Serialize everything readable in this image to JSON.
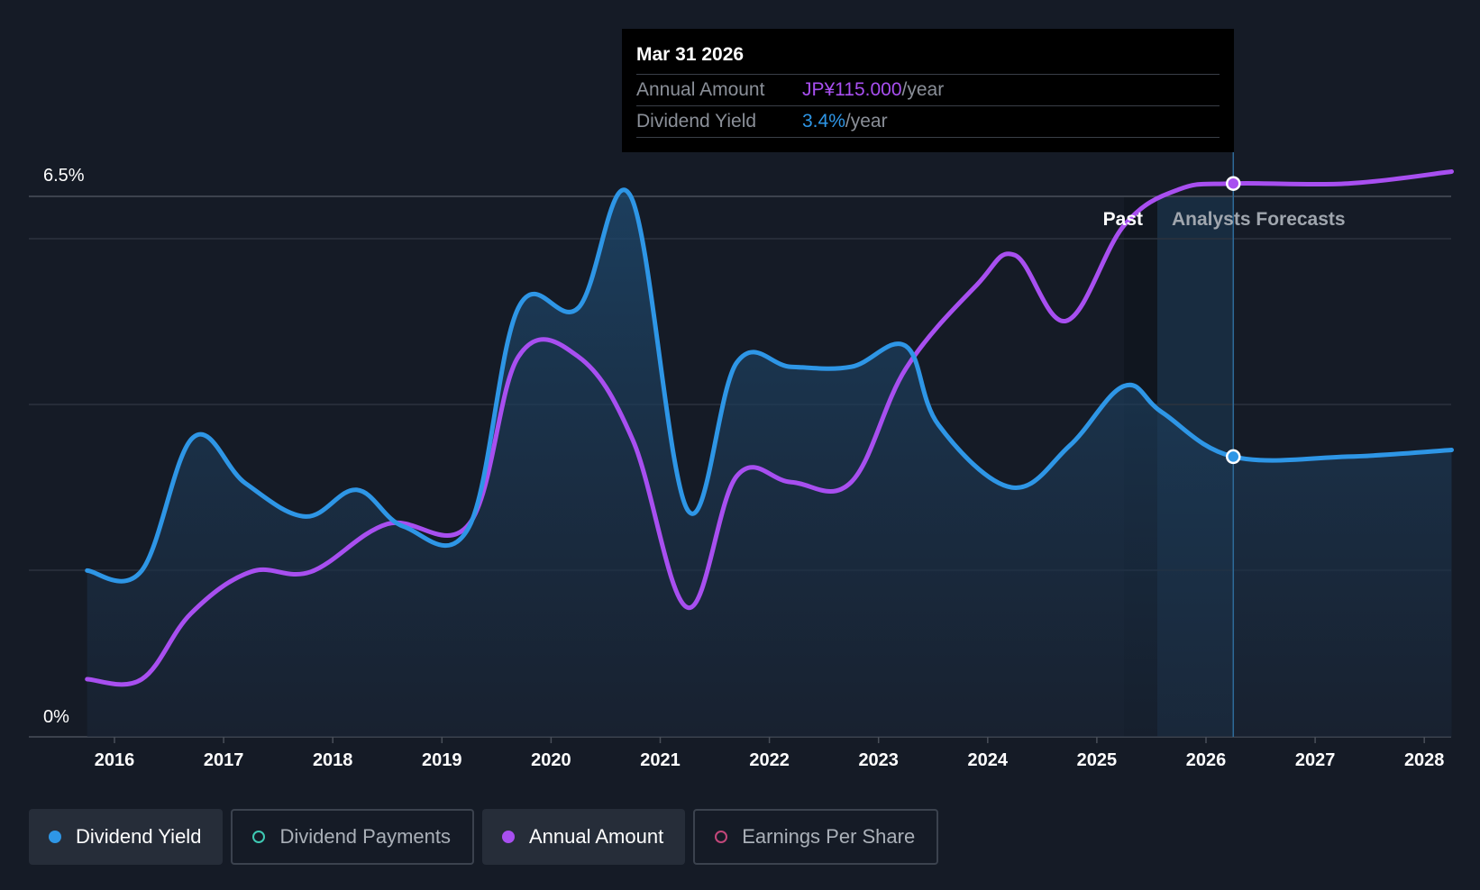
{
  "colors": {
    "yield": "#2e96e6",
    "amount": "#a84ff0",
    "payments": "#3ec9b3",
    "eps": "#c2477a",
    "background": "#151b26"
  },
  "tooltip": {
    "date": "Mar 31 2026",
    "amount_label": "Annual Amount",
    "amount_value": "JP¥115.000",
    "amount_unit": "/year",
    "yield_label": "Dividend Yield",
    "yield_value": "3.4%",
    "yield_unit": "/year"
  },
  "chart_data": {
    "type": "line",
    "y_top_label": "6.5%",
    "y_bottom_label": "0%",
    "ylim": [
      0,
      6.5
    ],
    "xlim": [
      2015.0,
      2028.25
    ],
    "x_ticks": [
      "2016",
      "2017",
      "2018",
      "2019",
      "2020",
      "2021",
      "2022",
      "2023",
      "2024",
      "2025",
      "2026",
      "2027",
      "2028"
    ],
    "grid": true,
    "past_label": "Past",
    "forecast_label": "Analysts Forecasts",
    "forecast_start": 2025.55,
    "highlight_x": 2026.25,
    "series": [
      {
        "name": "Dividend Yield",
        "unit": "%",
        "points": [
          [
            2015.75,
            2.0
          ],
          [
            2016.25,
            2.0
          ],
          [
            2016.72,
            3.6
          ],
          [
            2017.2,
            3.05
          ],
          [
            2017.75,
            2.65
          ],
          [
            2018.22,
            2.97
          ],
          [
            2018.65,
            2.53
          ],
          [
            2019.25,
            2.53
          ],
          [
            2019.7,
            5.16
          ],
          [
            2020.25,
            5.16
          ],
          [
            2020.73,
            6.5
          ],
          [
            2021.25,
            2.73
          ],
          [
            2021.7,
            4.5
          ],
          [
            2022.2,
            4.45
          ],
          [
            2022.75,
            4.45
          ],
          [
            2023.25,
            4.7
          ],
          [
            2023.55,
            3.75
          ],
          [
            2024.22,
            3.0
          ],
          [
            2024.75,
            3.5
          ],
          [
            2025.25,
            4.22
          ],
          [
            2025.6,
            3.9
          ],
          [
            2026.25,
            3.37
          ],
          [
            2027.3,
            3.37
          ],
          [
            2028.25,
            3.45
          ]
        ]
      },
      {
        "name": "Annual Amount",
        "unit": "JP¥",
        "points": [
          [
            2015.75,
            32
          ],
          [
            2016.25,
            32
          ],
          [
            2016.7,
            43
          ],
          [
            2017.25,
            50
          ],
          [
            2017.8,
            50
          ],
          [
            2018.5,
            58
          ],
          [
            2019.25,
            58
          ],
          [
            2019.7,
            86
          ],
          [
            2020.25,
            86
          ],
          [
            2020.75,
            72
          ],
          [
            2021.25,
            44
          ],
          [
            2021.7,
            66
          ],
          [
            2022.2,
            65
          ],
          [
            2022.75,
            65
          ],
          [
            2023.25,
            84
          ],
          [
            2023.9,
            98
          ],
          [
            2024.25,
            103
          ],
          [
            2024.72,
            92
          ],
          [
            2025.25,
            108
          ],
          [
            2025.75,
            114
          ],
          [
            2026.25,
            115
          ],
          [
            2027.3,
            115
          ],
          [
            2028.25,
            117
          ]
        ]
      }
    ]
  },
  "legend": [
    {
      "label": "Dividend Yield",
      "active": true,
      "color": "#2e96e6"
    },
    {
      "label": "Dividend Payments",
      "active": false,
      "color": "#3ec9b3"
    },
    {
      "label": "Annual Amount",
      "active": true,
      "color": "#a84ff0"
    },
    {
      "label": "Earnings Per Share",
      "active": false,
      "color": "#c2477a"
    }
  ]
}
